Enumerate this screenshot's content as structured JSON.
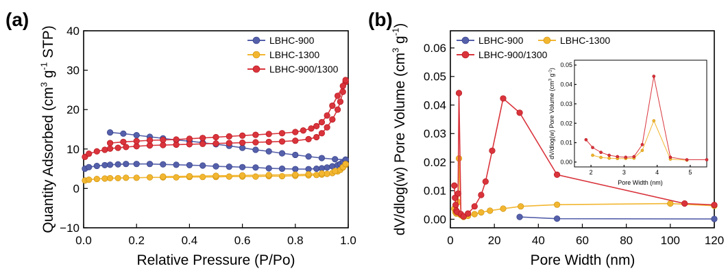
{
  "colors": {
    "blue": "#5560aa",
    "yellow": "#f2b630",
    "red": "#d9343c",
    "axis": "#000000"
  },
  "chart_data": [
    {
      "panel": "(a)",
      "type": "line",
      "xlabel": "Relative Pressure (P/Po)",
      "ylabel": "Quantity Adsorbed (cm3 g-1 STP)",
      "ylabel_parts": [
        "Quantity Adsorbed (cm",
        "3",
        " g",
        "-1",
        " STP)"
      ],
      "xlim": [
        0.0,
        1.0
      ],
      "ylim": [
        -10,
        40
      ],
      "xticks": [
        0.0,
        0.2,
        0.4,
        0.6,
        0.8,
        1.0
      ],
      "xtick_labels": [
        "0.0",
        "0.2",
        "0.4",
        "0.6",
        "0.8",
        "1.0"
      ],
      "yticks": [
        -10,
        0,
        10,
        20,
        30,
        40
      ],
      "ytick_labels": [
        "−10",
        "0",
        "10",
        "20",
        "30",
        "40"
      ],
      "legend_position": "top-right",
      "series": [
        {
          "name": "LBHC-900",
          "color_key": "blue",
          "adsorption": {
            "x": [
              0.005,
              0.02,
              0.05,
              0.08,
              0.1,
              0.13,
              0.16,
              0.2,
              0.25,
              0.3,
              0.35,
              0.4,
              0.45,
              0.5,
              0.55,
              0.6,
              0.65,
              0.7,
              0.75,
              0.8,
              0.85,
              0.88,
              0.9,
              0.92,
              0.94,
              0.96,
              0.97,
              0.98,
              0.99
            ],
            "y": [
              5.0,
              5.4,
              5.7,
              5.9,
              6.0,
              6.1,
              6.2,
              6.2,
              6.2,
              6.1,
              6.0,
              5.9,
              5.8,
              5.6,
              5.5,
              5.4,
              5.3,
              5.1,
              5.0,
              4.9,
              4.9,
              5.0,
              5.1,
              5.3,
              5.6,
              5.9,
              6.2,
              6.7,
              7.3
            ]
          },
          "desorption": {
            "x": [
              0.1,
              0.15,
              0.2,
              0.25,
              0.3,
              0.35,
              0.4,
              0.45,
              0.5,
              0.55,
              0.6,
              0.65,
              0.7,
              0.75,
              0.8,
              0.85,
              0.9,
              0.95,
              0.99
            ],
            "y": [
              14.2,
              13.9,
              13.5,
              13.1,
              12.7,
              12.3,
              12.0,
              11.6,
              11.2,
              10.8,
              10.3,
              9.8,
              9.4,
              8.9,
              8.5,
              8.1,
              7.7,
              7.4,
              7.3
            ]
          }
        },
        {
          "name": "LBHC-1300",
          "color_key": "yellow",
          "adsorption": {
            "x": [
              0.005,
              0.02,
              0.05,
              0.08,
              0.1,
              0.13,
              0.16,
              0.2,
              0.25,
              0.3,
              0.35,
              0.4,
              0.45,
              0.5,
              0.55,
              0.6,
              0.65,
              0.7,
              0.75,
              0.8,
              0.85,
              0.88,
              0.9,
              0.92,
              0.94,
              0.96,
              0.97,
              0.98,
              0.99
            ],
            "y": [
              2.0,
              2.2,
              2.4,
              2.5,
              2.6,
              2.6,
              2.7,
              2.7,
              2.8,
              2.8,
              2.8,
              2.9,
              2.9,
              2.9,
              3.0,
              3.0,
              3.0,
              3.1,
              3.1,
              3.2,
              3.3,
              3.4,
              3.5,
              3.7,
              3.9,
              4.3,
              4.7,
              5.3,
              6.0
            ]
          },
          "desorption": {
            "x": [
              0.3,
              0.4,
              0.5,
              0.6,
              0.7,
              0.8,
              0.85,
              0.9,
              0.95,
              0.98,
              0.99
            ],
            "y": [
              3.0,
              3.1,
              3.2,
              3.3,
              3.4,
              3.5,
              3.6,
              3.8,
              4.4,
              5.4,
              6.2
            ]
          }
        },
        {
          "name": "LBHC-900/1300",
          "color_key": "red",
          "adsorption": {
            "x": [
              0.005,
              0.02,
              0.05,
              0.08,
              0.1,
              0.13,
              0.16,
              0.2,
              0.25,
              0.3,
              0.35,
              0.4,
              0.45,
              0.5,
              0.55,
              0.6,
              0.65,
              0.7,
              0.75,
              0.8,
              0.85,
              0.88,
              0.9,
              0.92,
              0.94,
              0.96,
              0.97,
              0.98,
              0.99
            ],
            "y": [
              8.0,
              8.8,
              9.4,
              9.8,
              10.1,
              10.3,
              10.5,
              10.7,
              10.9,
              11.0,
              11.1,
              11.2,
              11.3,
              11.4,
              11.5,
              11.6,
              11.7,
              11.8,
              11.9,
              12.1,
              12.5,
              13.0,
              14.0,
              15.5,
              17.5,
              20.0,
              22.0,
              24.5,
              27.0
            ]
          },
          "desorption": {
            "x": [
              0.1,
              0.15,
              0.2,
              0.25,
              0.3,
              0.35,
              0.4,
              0.45,
              0.5,
              0.55,
              0.6,
              0.65,
              0.7,
              0.75,
              0.8,
              0.83,
              0.86,
              0.88,
              0.9,
              0.92,
              0.94,
              0.96,
              0.98,
              0.99
            ],
            "y": [
              11.5,
              11.8,
              12.0,
              12.2,
              12.3,
              12.4,
              12.6,
              12.8,
              13.0,
              13.2,
              13.4,
              13.6,
              13.8,
              14.0,
              14.3,
              14.7,
              15.2,
              15.8,
              16.8,
              18.5,
              21.0,
              23.5,
              26.0,
              27.5
            ]
          }
        }
      ]
    },
    {
      "panel": "(b)",
      "type": "line",
      "xlabel": "Pore Width (nm)",
      "ylabel": "dV/dlog(w) Pore Volume (cm3 g-1)",
      "ylabel_parts": [
        "dV/dlog(w) Pore Volume (cm",
        "3",
        " g",
        "-1",
        ")"
      ],
      "xlim": [
        0,
        120
      ],
      "ylim": [
        -0.003,
        0.066
      ],
      "xticks": [
        0,
        20,
        40,
        60,
        80,
        100,
        120
      ],
      "xtick_labels": [
        "0",
        "20",
        "40",
        "60",
        "80",
        "100",
        "120"
      ],
      "yticks": [
        0.0,
        0.01,
        0.02,
        0.03,
        0.04,
        0.05,
        0.06
      ],
      "ytick_labels": [
        "0.00",
        "0.01",
        "0.02",
        "0.03",
        "0.04",
        "0.05",
        "0.06"
      ],
      "legend_position": "top-left",
      "series": [
        {
          "name": "LBHC-900",
          "color_key": "blue",
          "x": [
            31.5,
            48.5,
            120
          ],
          "y": [
            0.0008,
            0.0002,
            0.0001
          ]
        },
        {
          "name": "LBHC-1300",
          "color_key": "yellow",
          "x": [
            1.8,
            2.3,
            2.7,
            3.1,
            3.5,
            3.9,
            4.8,
            6,
            8,
            11,
            14,
            18,
            24,
            32,
            48.5,
            100,
            120
          ],
          "y": [
            0.0037,
            0.0025,
            0.002,
            0.002,
            0.006,
            0.0213,
            0.0014,
            0.0008,
            0.0012,
            0.0018,
            0.0024,
            0.003,
            0.0037,
            0.0045,
            0.0051,
            0.0055,
            0.0047
          ]
        },
        {
          "name": "LBHC-900/1300",
          "color_key": "red",
          "x": [
            1.8,
            2.1,
            2.4,
            2.7,
            3.1,
            3.5,
            3.9,
            4.8,
            6,
            8,
            11,
            14,
            16,
            19,
            24,
            31.5,
            48.5,
            106.5,
            120
          ],
          "y": [
            0.0118,
            0.0075,
            0.005,
            0.003,
            0.0025,
            0.009,
            0.0442,
            0.0018,
            0.001,
            0.002,
            0.0045,
            0.0085,
            0.0132,
            0.024,
            0.0423,
            0.0373,
            0.0156,
            0.0055,
            0.005
          ]
        }
      ],
      "inset": {
        "xlabel": "Pore Width (nm)",
        "ylabel": "dV/dlog(w) Pore Volume (cm3 g-1)",
        "ylabel_parts": [
          "dV/dlog(w) Pore Volume (cm",
          "3",
          " g",
          "-1",
          ")"
        ],
        "xlim": [
          1.5,
          5.5
        ],
        "ylim": [
          -0.0025,
          0.0525
        ],
        "xticks": [
          2,
          3,
          4,
          5
        ],
        "xtick_labels": [
          "2",
          "3",
          "4",
          "5"
        ],
        "yticks": [
          0.0,
          0.01,
          0.02,
          0.03,
          0.04,
          0.05
        ],
        "ytick_labels": [
          "0.00",
          "0.01",
          "0.02",
          "0.03",
          "0.04",
          "0.05"
        ],
        "series": [
          {
            "name": "LBHC-1300",
            "color_key": "yellow",
            "x": [
              2.05,
              2.3,
              2.55,
              2.8,
              3.05,
              3.3,
              3.55,
              3.9,
              4.4,
              4.9
            ],
            "y": [
              0.0035,
              0.0024,
              0.002,
              0.0018,
              0.0018,
              0.002,
              0.006,
              0.0213,
              0.0015,
              0.001
            ]
          },
          {
            "name": "LBHC-900/1300",
            "color_key": "red",
            "x": [
              1.85,
              2.05,
              2.3,
              2.55,
              2.8,
              3.05,
              3.3,
              3.55,
              3.9,
              4.4,
              4.9,
              5.5
            ],
            "y": [
              0.0115,
              0.0075,
              0.005,
              0.0035,
              0.0028,
              0.0025,
              0.0028,
              0.009,
              0.0442,
              0.0025,
              0.0012,
              0.0012
            ]
          }
        ]
      }
    }
  ]
}
